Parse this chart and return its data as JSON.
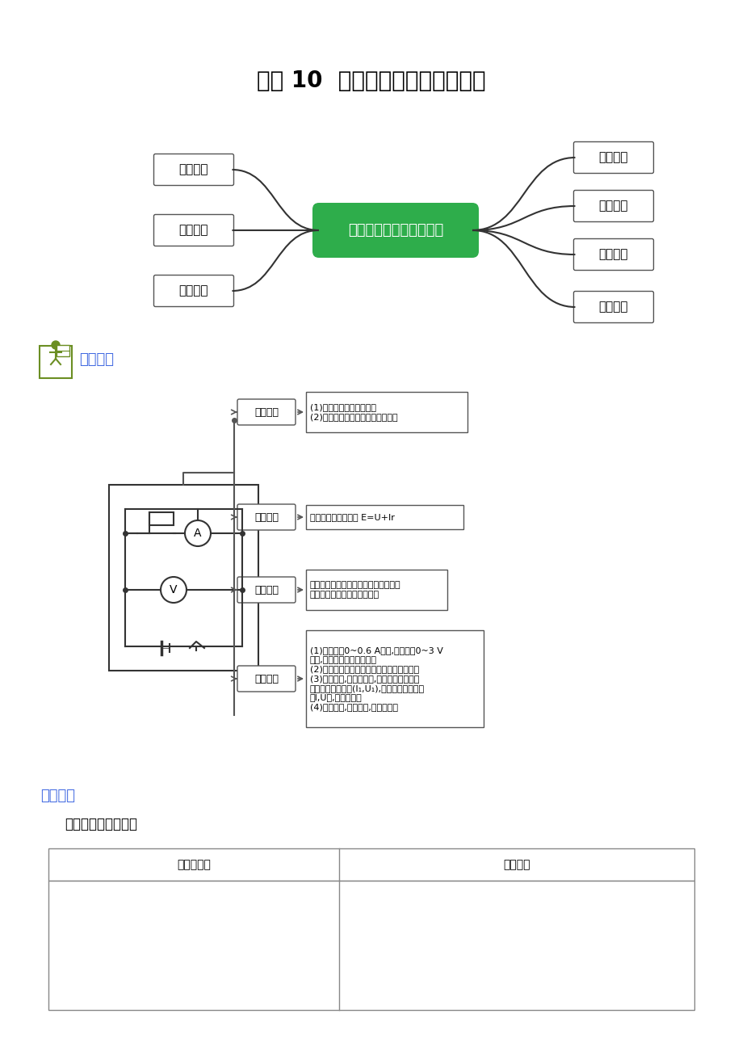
{
  "title": "实验 10  测量电源的电动势和内阻",
  "mind_center": "测量电源的电动势和内阻",
  "mind_center_color": "#2EAD4B",
  "mind_left_nodes": [
    "思维突破",
    "基本突破",
    "原型图破"
  ],
  "mind_right_nodes": [
    "创新突破",
    "拓展突破",
    "真题突破",
    "模拟突破"
  ],
  "section1_label": "思维突破",
  "section1_color": "#4169E1",
  "section2_label": "原型突破",
  "section2_color": "#4169E1",
  "exp_nodes": [
    {
      "label": "实验目的",
      "content": "(1)测电源的电动势和内阻\n(2)加深对闭合电路欧姆定律的理解"
    },
    {
      "label": "实验原理",
      "content": "闭合电路的欧姆定律 E=U+Ir"
    },
    {
      "label": "实验器材",
      "content": "电池、电压表、电流表、滑动变阻器、\n开关、导线、坐标纸和刻度尺"
    },
    {
      "label": "实验步骤",
      "content": "(1)电流表用0~0.6 A量程,电压表用0~3 V\n量程,按实验电路连接好电路\n(2)把变阻器的滑片移动到使阻值最大的一端\n(3)闭合开关,调节变阻器,使电流表有明显示\n数并记录一组数据(I₁,U₁),且同样方法测量几\n组I,U值,填人表格中\n(4)断开开关,拆除电路,整理好器材"
    }
  ],
  "table_header": [
    "原理电路图",
    "操作要领"
  ],
  "bg_color": "#FFFFFF",
  "text_color": "#000000",
  "box_edge_color": "#555555",
  "green_color": "#2EAD4B",
  "blue_color": "#4169E1",
  "icon_color": "#6B8E23"
}
